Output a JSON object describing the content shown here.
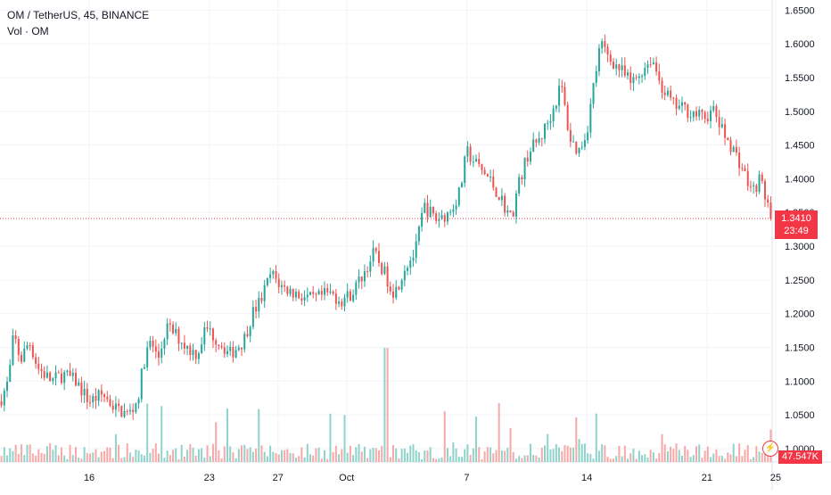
{
  "legend": {
    "symbol_line": "OM / TetherUS, 45, BINANCE",
    "volume_line": "Vol · OM"
  },
  "colors": {
    "up": "#26a69a",
    "down": "#ef5350",
    "up_volume": "#8fd3cb",
    "down_volume": "#f7a9a7",
    "grid": "#f0f3fa",
    "last_price_line": "#f23645"
  },
  "last_price": {
    "value": "1.3410",
    "countdown": "23:49",
    "price": 1.341
  },
  "volume_tag": "47.547K",
  "lightning_icon": "lightning-icon",
  "chart_data": {
    "type": "candlestick",
    "title": "OM / TetherUS, 45, BINANCE",
    "ylim": [
      0.98,
      1.665
    ],
    "y_ticks": [
      "1.6500",
      "1.6000",
      "1.5500",
      "1.5000",
      "1.4500",
      "1.4000",
      "1.3500",
      "1.3000",
      "1.2500",
      "1.2000",
      "1.1500",
      "1.1000",
      "1.0500",
      "1.0000"
    ],
    "y_tick_values": [
      1.65,
      1.6,
      1.55,
      1.5,
      1.45,
      1.4,
      1.35,
      1.3,
      1.25,
      1.2,
      1.15,
      1.1,
      1.05,
      1.0
    ],
    "x_ticks": [
      "16",
      "23",
      "27",
      "Oct",
      "7",
      "14",
      "21",
      "25"
    ],
    "x_tick_days": [
      16,
      23,
      27,
      31,
      38,
      45,
      52,
      56
    ],
    "x_range_days": [
      10.8,
      55.8
    ],
    "series_close_path": [
      {
        "day": 10.8,
        "close": 1.07
      },
      {
        "day": 11.3,
        "close": 1.1
      },
      {
        "day": 11.6,
        "close": 1.17
      },
      {
        "day": 12.0,
        "close": 1.13
      },
      {
        "day": 12.5,
        "close": 1.16
      },
      {
        "day": 13.0,
        "close": 1.12
      },
      {
        "day": 13.8,
        "close": 1.1
      },
      {
        "day": 14.5,
        "close": 1.11
      },
      {
        "day": 15.2,
        "close": 1.1
      },
      {
        "day": 16.0,
        "close": 1.07
      },
      {
        "day": 16.8,
        "close": 1.08
      },
      {
        "day": 17.5,
        "close": 1.06
      },
      {
        "day": 18.3,
        "close": 1.05
      },
      {
        "day": 18.8,
        "close": 1.07
      },
      {
        "day": 19.2,
        "close": 1.13
      },
      {
        "day": 19.6,
        "close": 1.16
      },
      {
        "day": 20.0,
        "close": 1.13
      },
      {
        "day": 20.5,
        "close": 1.18
      },
      {
        "day": 21.0,
        "close": 1.17
      },
      {
        "day": 21.7,
        "close": 1.15
      },
      {
        "day": 22.3,
        "close": 1.14
      },
      {
        "day": 22.8,
        "close": 1.18
      },
      {
        "day": 23.5,
        "close": 1.16
      },
      {
        "day": 24.2,
        "close": 1.14
      },
      {
        "day": 25.0,
        "close": 1.16
      },
      {
        "day": 25.5,
        "close": 1.2
      },
      {
        "day": 26.0,
        "close": 1.22
      },
      {
        "day": 26.6,
        "close": 1.26
      },
      {
        "day": 27.2,
        "close": 1.24
      },
      {
        "day": 28.0,
        "close": 1.23
      },
      {
        "day": 29.0,
        "close": 1.22
      },
      {
        "day": 30.0,
        "close": 1.23
      },
      {
        "day": 30.7,
        "close": 1.22
      },
      {
        "day": 31.3,
        "close": 1.23
      },
      {
        "day": 32.0,
        "close": 1.26
      },
      {
        "day": 32.6,
        "close": 1.29
      },
      {
        "day": 33.2,
        "close": 1.26
      },
      {
        "day": 33.8,
        "close": 1.23
      },
      {
        "day": 34.4,
        "close": 1.27
      },
      {
        "day": 35.0,
        "close": 1.29
      },
      {
        "day": 35.5,
        "close": 1.36
      },
      {
        "day": 36.2,
        "close": 1.34
      },
      {
        "day": 37.0,
        "close": 1.35
      },
      {
        "day": 37.6,
        "close": 1.38
      },
      {
        "day": 38.0,
        "close": 1.44
      },
      {
        "day": 38.6,
        "close": 1.42
      },
      {
        "day": 39.3,
        "close": 1.4
      },
      {
        "day": 40.0,
        "close": 1.37
      },
      {
        "day": 40.6,
        "close": 1.34
      },
      {
        "day": 41.0,
        "close": 1.39
      },
      {
        "day": 41.6,
        "close": 1.44
      },
      {
        "day": 42.3,
        "close": 1.46
      },
      {
        "day": 43.0,
        "close": 1.5
      },
      {
        "day": 43.5,
        "close": 1.54
      },
      {
        "day": 44.0,
        "close": 1.46
      },
      {
        "day": 44.5,
        "close": 1.44
      },
      {
        "day": 45.0,
        "close": 1.47
      },
      {
        "day": 45.4,
        "close": 1.54
      },
      {
        "day": 45.8,
        "close": 1.6
      },
      {
        "day": 46.3,
        "close": 1.58
      },
      {
        "day": 47.0,
        "close": 1.56
      },
      {
        "day": 47.6,
        "close": 1.54
      },
      {
        "day": 48.2,
        "close": 1.56
      },
      {
        "day": 48.8,
        "close": 1.58
      },
      {
        "day": 49.3,
        "close": 1.54
      },
      {
        "day": 50.0,
        "close": 1.51
      },
      {
        "day": 51.0,
        "close": 1.5
      },
      {
        "day": 51.8,
        "close": 1.49
      },
      {
        "day": 52.4,
        "close": 1.5
      },
      {
        "day": 52.9,
        "close": 1.47
      },
      {
        "day": 53.4,
        "close": 1.45
      },
      {
        "day": 54.0,
        "close": 1.42
      },
      {
        "day": 54.6,
        "close": 1.38
      },
      {
        "day": 55.1,
        "close": 1.4
      },
      {
        "day": 55.8,
        "close": 1.341
      }
    ]
  }
}
